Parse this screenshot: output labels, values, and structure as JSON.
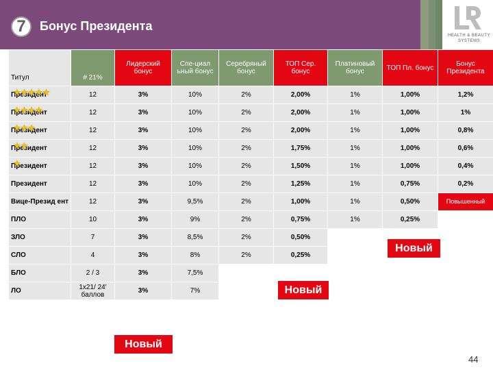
{
  "header": {
    "number": "7",
    "title": "Бонус Президента",
    "logo_mark": "LR",
    "logo_text_line1": "HEALTH & BEAUTY",
    "logo_text_line2": "SYSTEMS",
    "colors": {
      "band": "#7b4a7b",
      "strips": [
        "#8c9c7c",
        "#7d9074",
        "#6e8766"
      ]
    }
  },
  "table": {
    "columns": [
      {
        "label": "Титул",
        "style": "grey"
      },
      {
        "label": "# 21%",
        "style": "green"
      },
      {
        "label": "Лидерский бонус",
        "style": "red"
      },
      {
        "label": "Спе-циал ьный бонус",
        "style": "green"
      },
      {
        "label": "Серебряный бонус",
        "style": "green"
      },
      {
        "label": "ТОП Сер. бонус",
        "style": "red"
      },
      {
        "label": "Платиновый бонус",
        "style": "green"
      },
      {
        "label": "ТОП Пл. бонус",
        "style": "red"
      },
      {
        "label": "Бонус Президента",
        "style": "red"
      }
    ],
    "rows": [
      {
        "stars": 5,
        "cells": [
          "Президент",
          "12",
          "3%",
          "10%",
          "2%",
          "2,00%",
          "1%",
          "1,00%",
          "1,2%"
        ]
      },
      {
        "stars": 4,
        "cells": [
          "Президент",
          "12",
          "3%",
          "10%",
          "2%",
          "2,00%",
          "1%",
          "1,00%",
          "1%"
        ]
      },
      {
        "stars": 3,
        "cells": [
          "Президент",
          "12",
          "3%",
          "10%",
          "2%",
          "2,00%",
          "1%",
          "1,00%",
          "0,8%"
        ]
      },
      {
        "stars": 2,
        "cells": [
          "Президент",
          "12",
          "3%",
          "10%",
          "2%",
          "1,75%",
          "1%",
          "1,00%",
          "0,6%"
        ]
      },
      {
        "stars": 1,
        "cells": [
          "Президент",
          "12",
          "3%",
          "10%",
          "2%",
          "1,50%",
          "1%",
          "1,00%",
          "0,4%"
        ]
      },
      {
        "stars": 0,
        "cells": [
          "Президент",
          "12",
          "3%",
          "10%",
          "2%",
          "1,25%",
          "1%",
          "0,75%",
          "0,2%"
        ]
      },
      {
        "stars": 0,
        "cells": [
          "Вице-Презид ент",
          "12",
          "3%",
          "9,5%",
          "2%",
          "1,00%",
          "1%",
          "0,50%",
          "Повышенный"
        ]
      },
      {
        "stars": 0,
        "cells": [
          "ПЛО",
          "10",
          "3%",
          "9%",
          "2%",
          "0,75%",
          "1%",
          "0,25%",
          ""
        ]
      },
      {
        "stars": 0,
        "cells": [
          "ЗЛО",
          "7",
          "3%",
          "8,5%",
          "2%",
          "0,50%",
          "",
          "",
          ""
        ]
      },
      {
        "stars": 0,
        "cells": [
          "СЛО",
          "4",
          "3%",
          "8%",
          "2%",
          "0,25%",
          "",
          "",
          ""
        ]
      },
      {
        "stars": 0,
        "cells": [
          "БЛО",
          "2 / 3",
          "3%",
          "7,5%",
          "",
          "",
          "",
          "",
          ""
        ]
      },
      {
        "stars": 0,
        "cells": [
          "ЛО",
          "1x21/ 24' баллов",
          "3%",
          "7%",
          "",
          "",
          "",
          "",
          ""
        ]
      }
    ],
    "star_glyph": "★"
  },
  "badges": {
    "new_label": "Новый"
  },
  "page_number": "44"
}
